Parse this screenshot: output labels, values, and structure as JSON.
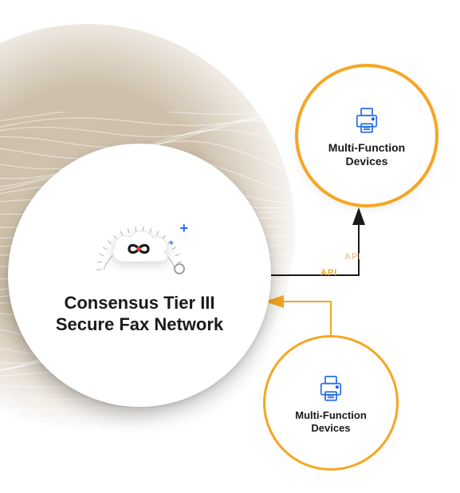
{
  "diagram": {
    "type": "network",
    "background": {
      "page_color": "#ffffff",
      "halo_gradient_inner": "#cbbaa2",
      "halo_gradient_outer": "#ffffff",
      "contour_line_color": "#ffffff",
      "contour_line_opacity": 0.55,
      "contour_line_width": 1.1
    },
    "main_node": {
      "title_line1": "Consensus Tier III",
      "title_line2": "Secure Fax Network",
      "title_fontsize": 22,
      "title_color": "#1a1a1a",
      "circle_fill": "#ffffff",
      "circle_shadow": "rgba(0,0,0,0.22)",
      "cloud": {
        "fill": "#ffffff",
        "outline": "#e6e6e6",
        "infinity_stroke": "#1a1a1a",
        "infinity_dot": "#f03a2f",
        "plus_color": "#2a6fe8",
        "tick_color": "#bdbdbd"
      }
    },
    "satellite_nodes": [
      {
        "id": "mfd-top",
        "label_line1": "Multi-Function",
        "label_line2": "Devices",
        "label_fontsize": 14,
        "border_color": "#f5a623",
        "border_width": 4,
        "fill": "#ffffff",
        "icon_color": "#2a6fe8"
      },
      {
        "id": "mfd-bottom",
        "label_line1": "Multi-Function",
        "label_line2": "Devices",
        "label_fontsize": 13,
        "border_color": "#f5a623",
        "border_width": 3,
        "fill": "#ffffff",
        "icon_color": "#2a6fe8"
      }
    ],
    "edges": [
      {
        "from": "main",
        "to": "mfd-top",
        "color": "#1a1a1a",
        "width": 2,
        "arrow": "to-target"
      },
      {
        "from": "mfd-bottom",
        "to": "main",
        "color": "#f5a623",
        "width": 2,
        "arrow": "to-target"
      }
    ],
    "edge_labels": {
      "text": "API",
      "color_muted": "#e9c9a0",
      "color_strong": "#f5a623",
      "fontsize": 11
    }
  }
}
